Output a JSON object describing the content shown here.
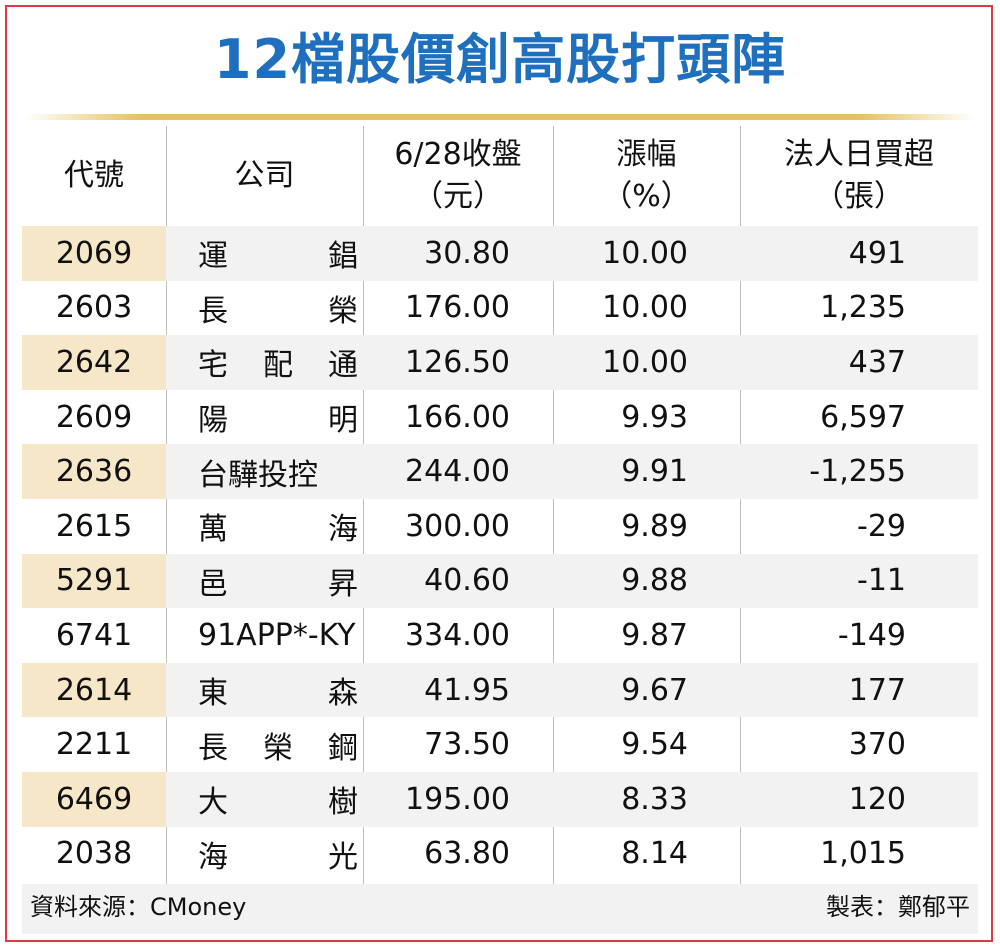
{
  "title": "12檔股價創高股打頭陣",
  "headers": {
    "code": "代號",
    "company": "公司",
    "close_1": "6/28收盤",
    "close_2": "（元）",
    "change_1": "漲幅",
    "change_2": "（%）",
    "net_1": "法人日買超",
    "net_2": "（張）"
  },
  "chart_data": {
    "type": "table",
    "title": "12檔股價創高股打頭陣",
    "columns": [
      "代號",
      "公司",
      "6/28收盤（元）",
      "漲幅（%）",
      "法人日買超（張）"
    ],
    "rows": [
      {
        "code": "2069",
        "name": "運錩",
        "name_chars": [
          "運",
          "錩"
        ],
        "close": "30.80",
        "change": "10.00",
        "net": "491"
      },
      {
        "code": "2603",
        "name": "長榮",
        "name_chars": [
          "長",
          "榮"
        ],
        "close": "176.00",
        "change": "10.00",
        "net": "1,235"
      },
      {
        "code": "2642",
        "name": "宅配通",
        "name_chars": [
          "宅",
          "配",
          "通"
        ],
        "close": "126.50",
        "change": "10.00",
        "net": "437"
      },
      {
        "code": "2609",
        "name": "陽明",
        "name_chars": [
          "陽",
          "明"
        ],
        "close": "166.00",
        "change": "9.93",
        "net": "6,597"
      },
      {
        "code": "2636",
        "name": "台驊投控",
        "name_chars": [
          "台驊投控"
        ],
        "close": "244.00",
        "change": "9.91",
        "net": "-1,255"
      },
      {
        "code": "2615",
        "name": "萬海",
        "name_chars": [
          "萬",
          "海"
        ],
        "close": "300.00",
        "change": "9.89",
        "net": "-29"
      },
      {
        "code": "5291",
        "name": "邑昇",
        "name_chars": [
          "邑",
          "昇"
        ],
        "close": "40.60",
        "change": "9.88",
        "net": "-11"
      },
      {
        "code": "6741",
        "name": "91APP*-KY",
        "name_chars": [
          "91APP*-KY"
        ],
        "close": "334.00",
        "change": "9.87",
        "net": "-149"
      },
      {
        "code": "2614",
        "name": "東森",
        "name_chars": [
          "東",
          "森"
        ],
        "close": "41.95",
        "change": "9.67",
        "net": "177"
      },
      {
        "code": "2211",
        "name": "長榮鋼",
        "name_chars": [
          "長",
          "榮",
          "鋼"
        ],
        "close": "73.50",
        "change": "9.54",
        "net": "370"
      },
      {
        "code": "6469",
        "name": "大樹",
        "name_chars": [
          "大",
          "樹"
        ],
        "close": "195.00",
        "change": "8.33",
        "net": "120"
      },
      {
        "code": "2038",
        "name": "海光",
        "name_chars": [
          "海",
          "光"
        ],
        "close": "63.80",
        "change": "8.14",
        "net": "1,015"
      }
    ]
  },
  "footer": {
    "source": "資料來源：CMoney",
    "maker": "製表：鄭郁平"
  },
  "colors": {
    "title": "#1f6fbf",
    "frame": "#e03a4a",
    "rule": "#e6c25f",
    "code_highlight": "#f6e7c8",
    "row_shade": "#f2f2f2"
  }
}
